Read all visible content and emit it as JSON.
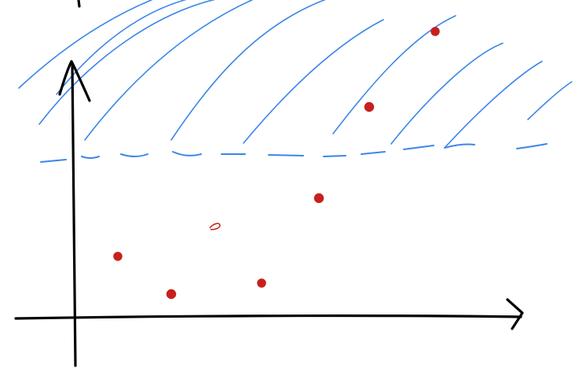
{
  "colors": {
    "background": "#ffffff",
    "axis": "#000000",
    "hatch": "#3c86e8",
    "threshold": "#3c86e8",
    "points": "#c8201e"
  },
  "diagram": {
    "threshold_style": "dashed",
    "shaded_region": "above-threshold",
    "point_count": 7
  }
}
